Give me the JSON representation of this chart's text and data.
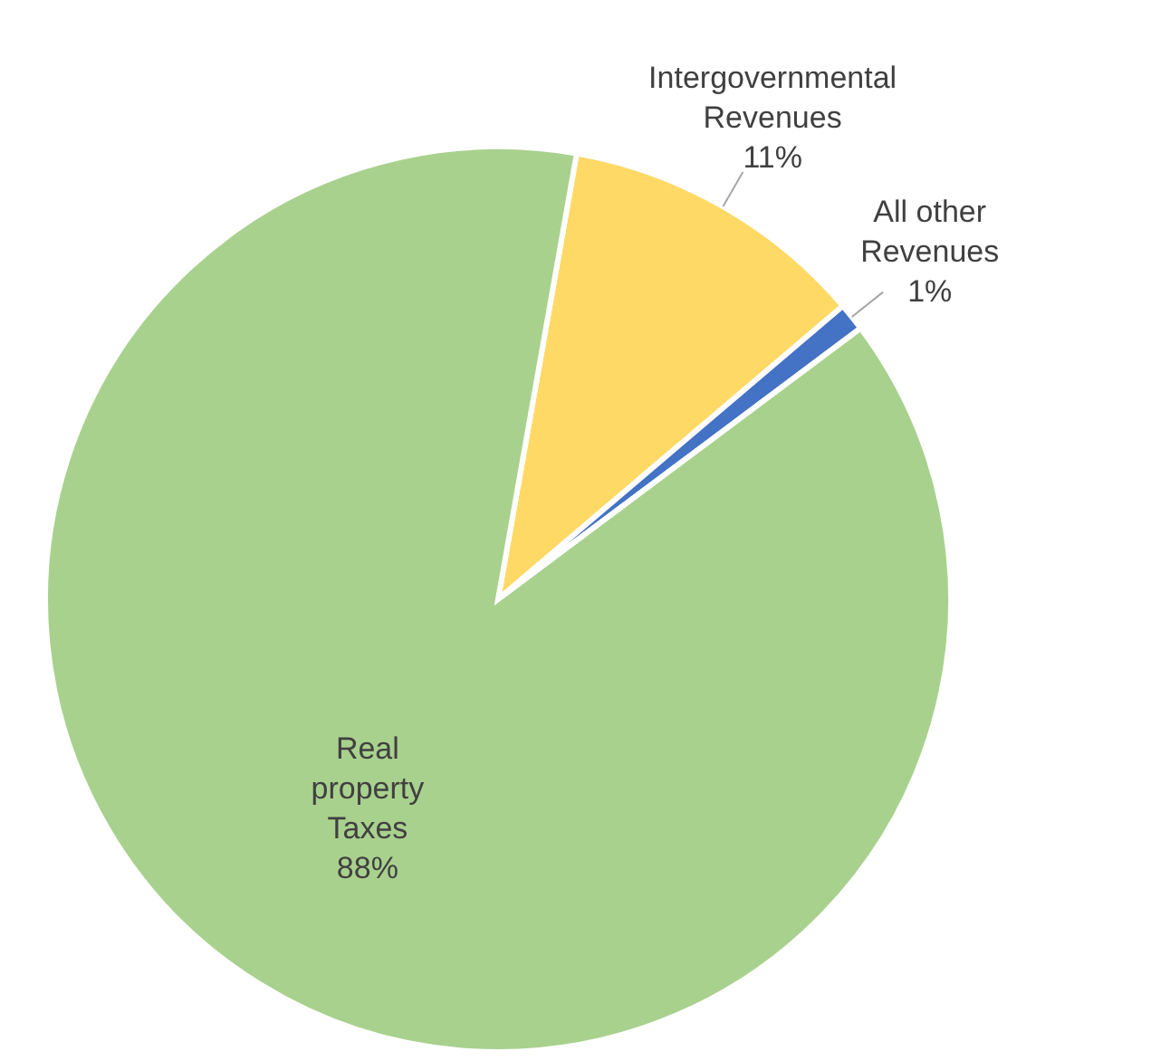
{
  "chart_data": {
    "type": "pie",
    "categories": [
      "Intergovernmental Revenues",
      "All other Revenues",
      "Real property Taxes"
    ],
    "values": [
      11,
      1,
      88
    ],
    "colors": [
      "#ffd966",
      "#4472c4",
      "#a9d18e"
    ],
    "value_labels": [
      "11%",
      "1%",
      "88%"
    ]
  }
}
